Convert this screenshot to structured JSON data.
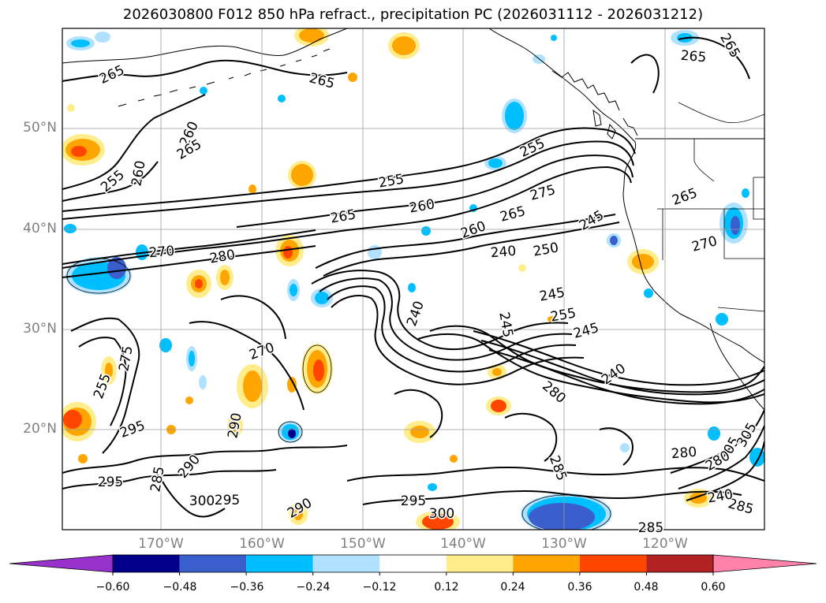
{
  "title": "2026030800 F012 850 hPa refract., precipitation PC (2026031112 - 2026031212)",
  "colors": {
    "land_line": "#000000",
    "grid": "#9a9a9a",
    "contour": "#000000"
  },
  "lat_labels": [
    "50°N",
    "40°N",
    "30°N",
    "20°N"
  ],
  "lon_labels": [
    "170°W",
    "160°W",
    "150°W",
    "140°W",
    "130°W",
    "120°W"
  ],
  "contour_labels": [
    "265",
    "265",
    "265",
    "265",
    "260",
    "265",
    "255",
    "260",
    "255",
    "255",
    "260",
    "265",
    "275",
    "265",
    "260",
    "245",
    "265",
    "270",
    "270",
    "280",
    "240",
    "250",
    "245",
    "240",
    "245",
    "255",
    "245",
    "240",
    "255",
    "270",
    "280",
    "275",
    "295",
    "290",
    "285",
    "280",
    "305",
    "285",
    "295",
    "300",
    "290",
    "305",
    "300",
    "295",
    "290",
    "295",
    "285",
    "280",
    "240",
    "285"
  ],
  "colorbar": {
    "ticks": [
      "−0.60",
      "−0.48",
      "−0.36",
      "−0.24",
      "−0.12",
      "0.12",
      "0.24",
      "0.36",
      "0.48",
      "0.60"
    ],
    "colors": [
      "#9932cc",
      "#00008b",
      "#3a5fcd",
      "#00bfff",
      "#b0e2ff",
      "#ffffff",
      "#ffec8b",
      "#ffa500",
      "#ff4500",
      "#b22222",
      "#ff82ab"
    ]
  }
}
